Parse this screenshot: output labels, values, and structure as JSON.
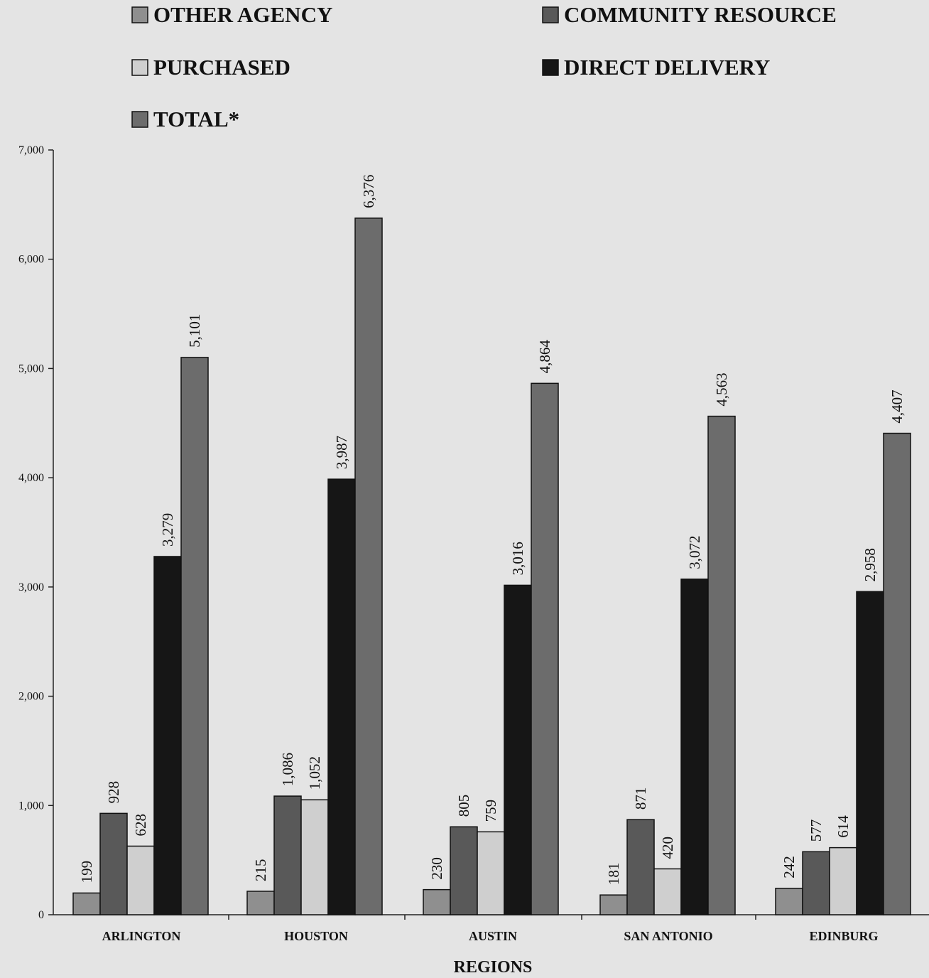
{
  "chart_data": {
    "type": "bar",
    "title": "",
    "xlabel": "REGIONS",
    "ylabel": "",
    "ylim": [
      0,
      7000
    ],
    "yticks": [
      "0",
      "1,000",
      "2,000",
      "3,000",
      "4,000",
      "5,000",
      "6,000",
      "7,000"
    ],
    "ytick_values": [
      0,
      1000,
      2000,
      3000,
      4000,
      5000,
      6000,
      7000
    ],
    "categories": [
      "ARLINGTON",
      "HOUSTON",
      "AUSTIN",
      "SAN ANTONIO",
      "EDINBURG"
    ],
    "grid": false,
    "legend_position": "top",
    "series": [
      {
        "name": "OTHER AGENCY",
        "color": "#8f8f8f",
        "values": [
          199,
          215,
          230,
          181,
          242
        ],
        "labels": [
          "199",
          "215",
          "230",
          "181",
          "242"
        ]
      },
      {
        "name": "COMMUNITY RESOURCE",
        "color": "#595959",
        "values": [
          928,
          1086,
          805,
          871,
          577
        ],
        "labels": [
          "928",
          "1,086",
          "805",
          "871",
          "577"
        ]
      },
      {
        "name": "PURCHASED",
        "color": "#cfcfcf",
        "values": [
          628,
          1052,
          759,
          420,
          614
        ],
        "labels": [
          "628",
          "1,052",
          "759",
          "420",
          "614"
        ]
      },
      {
        "name": "DIRECT DELIVERY",
        "color": "#161616",
        "values": [
          3279,
          3987,
          3016,
          3072,
          2958
        ],
        "labels": [
          "3,279",
          "3,987",
          "3,016",
          "3,072",
          "2,958"
        ]
      },
      {
        "name": "TOTAL*",
        "color": "#6c6c6c",
        "values": [
          5101,
          6376,
          4864,
          4563,
          4407
        ],
        "labels": [
          "5,101",
          "6,376",
          "4,864",
          "4,563",
          "4,407"
        ]
      }
    ]
  }
}
